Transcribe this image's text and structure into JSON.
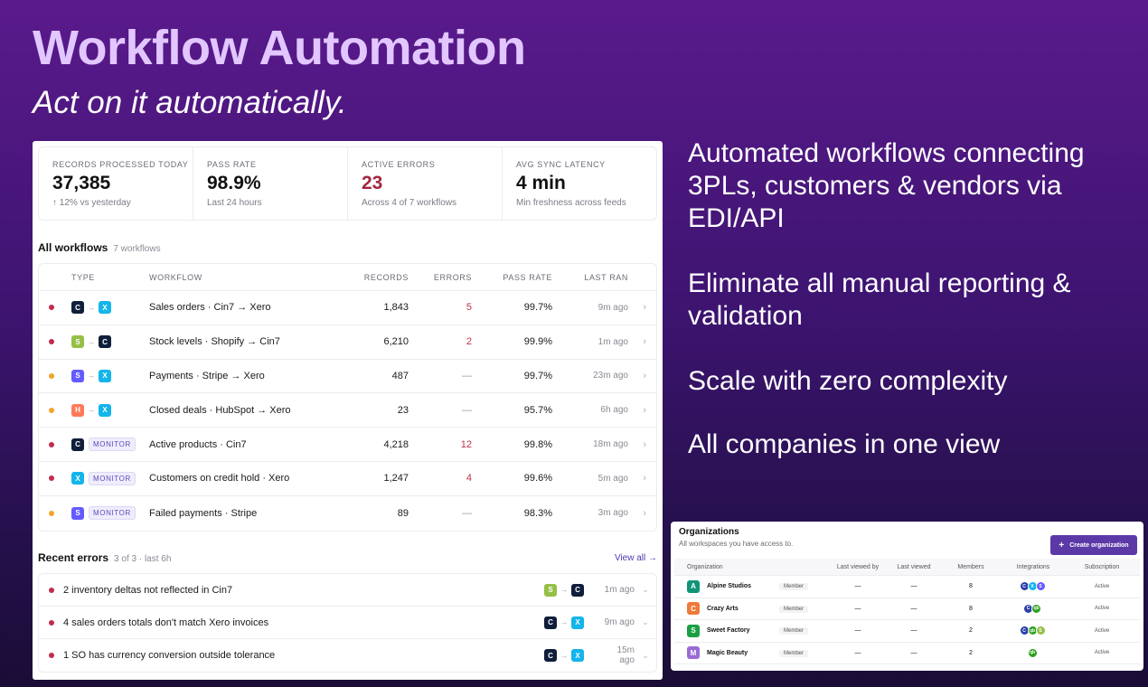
{
  "hero": {
    "title": "Workflow Automation",
    "subtitle": "Act on it automatically."
  },
  "bullets": [
    "Automated workflows connecting 3PLs, customers & vendors via EDI/API",
    "Eliminate all manual reporting & validation",
    "Scale with zero complexity",
    "All companies in one view"
  ],
  "stats": [
    {
      "label": "RECORDS PROCESSED TODAY",
      "value": "37,385",
      "sub": "↑ 12% vs yesterday"
    },
    {
      "label": "PASS RATE",
      "value": "98.9%",
      "sub": "Last 24 hours"
    },
    {
      "label": "ACTIVE ERRORS",
      "value": "23",
      "sub": "Across 4 of 7 workflows"
    },
    {
      "label": "AVG SYNC LATENCY",
      "value": "4 min",
      "sub": "Min freshness across feeds"
    }
  ],
  "workflows": {
    "title": "All workflows",
    "count": "7 workflows",
    "columns": {
      "type": "TYPE",
      "workflow": "WORKFLOW",
      "records": "RECORDS",
      "errors": "ERRORS",
      "pass_rate": "PASS RATE",
      "last_ran": "LAST RAN"
    },
    "rows": [
      {
        "status": "red",
        "src": "C",
        "dst": "X",
        "monitor": "",
        "name": "Sales orders · Cin7 → Xero",
        "records": "1,843",
        "errors": "5",
        "pass": "99.7%",
        "last": "9m ago"
      },
      {
        "status": "red",
        "src": "S",
        "dst": "C",
        "monitor": "",
        "name": "Stock levels · Shopify → Cin7",
        "records": "6,210",
        "errors": "2",
        "pass": "99.9%",
        "last": "1m ago"
      },
      {
        "status": "orange",
        "src": "S",
        "dst": "X",
        "monitor": "",
        "name": "Payments · Stripe → Xero",
        "records": "487",
        "errors": "—",
        "pass": "99.7%",
        "last": "23m ago"
      },
      {
        "status": "orange",
        "src": "H",
        "dst": "X",
        "monitor": "",
        "name": "Closed deals · HubSpot → Xero",
        "records": "23",
        "errors": "—",
        "pass": "95.7%",
        "last": "6h ago"
      },
      {
        "status": "red",
        "src": "C",
        "dst": "",
        "monitor": "MONITOR",
        "name": "Active products · Cin7",
        "records": "4,218",
        "errors": "12",
        "pass": "99.8%",
        "last": "18m ago"
      },
      {
        "status": "red",
        "src": "X",
        "dst": "",
        "monitor": "MONITOR",
        "name": "Customers on credit hold · Xero",
        "records": "1,247",
        "errors": "4",
        "pass": "99.6%",
        "last": "5m ago"
      },
      {
        "status": "orange",
        "src": "S",
        "dst": "",
        "monitor": "MONITOR",
        "name": "Failed payments · Stripe",
        "records": "89",
        "errors": "—",
        "pass": "98.3%",
        "last": "3m ago"
      }
    ]
  },
  "recent_errors": {
    "title": "Recent errors",
    "meta": "3 of 3 · last 6h",
    "view_all": "View all →",
    "rows": [
      {
        "text": "2 inventory deltas not reflected in Cin7",
        "src": "S",
        "dst": "C",
        "time": "1m ago"
      },
      {
        "text": "4 sales orders totals don't match Xero invoices",
        "src": "C",
        "dst": "X",
        "time": "9m ago"
      },
      {
        "text": "1 SO has currency conversion outside tolerance",
        "src": "C",
        "dst": "X",
        "time": "15m ago"
      }
    ]
  },
  "badge_colors": {
    "C": "#0f1e3a",
    "X": "#13b5ea",
    "Sshopify": "#95bf47",
    "Sstripe": "#635bff",
    "H": "#ff7a59"
  },
  "organizations": {
    "title": "Organizations",
    "subtitle": "All workspaces you have access to.",
    "create_label": "Create organization",
    "columns": {
      "organization": "Organization",
      "last_viewed_by": "Last viewed by",
      "last_viewed": "Last viewed",
      "members": "Members",
      "integrations": "Integrations",
      "subscription": "Subscription"
    },
    "rows": [
      {
        "initial": "A",
        "color": "#129479",
        "name": "Alpine Studios",
        "role": "Member",
        "lvb": "—",
        "lv": "—",
        "members": "8",
        "integrations": [
          "cin7",
          "xero",
          "stripe"
        ],
        "subscription": "Active"
      },
      {
        "initial": "C",
        "color": "#f07a3a",
        "name": "Crazy Arts",
        "role": "Member",
        "lvb": "—",
        "lv": "—",
        "members": "8",
        "integrations": [
          "cin7",
          "qb"
        ],
        "subscription": "Active"
      },
      {
        "initial": "S",
        "color": "#1aa043",
        "name": "Sweet Factory",
        "role": "Member",
        "lvb": "—",
        "lv": "—",
        "members": "2",
        "integrations": [
          "cin7",
          "qb",
          "shopify"
        ],
        "subscription": "Active"
      },
      {
        "initial": "M",
        "color": "#9b6ad6",
        "name": "Magic Beauty",
        "role": "Member",
        "lvb": "—",
        "lv": "—",
        "members": "2",
        "integrations": [
          "qb"
        ],
        "subscription": "Active"
      }
    ]
  }
}
